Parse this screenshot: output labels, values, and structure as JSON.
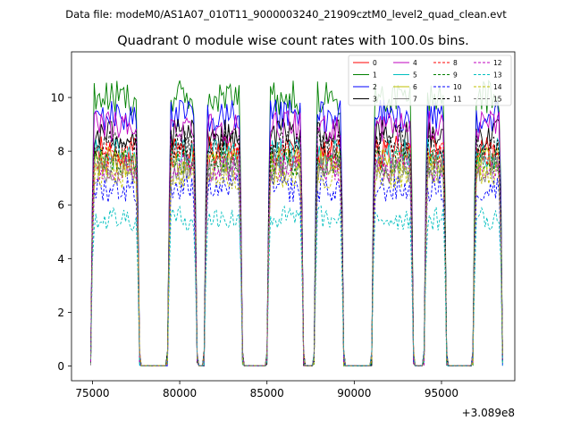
{
  "chart_data": {
    "type": "line",
    "suptitle": "Data file: modeM0/AS1A07_010T11_9000003240_21909cztM0_level2_quad_clean.evt",
    "title": "Quadrant 0 module wise count rates with 100.0s bins.",
    "xlabel": "",
    "ylabel": "",
    "x_offset_label": "+3.089e8",
    "xlim": [
      73800,
      99200
    ],
    "ylim": [
      -0.55,
      11.7
    ],
    "x_ticks": [
      75000,
      80000,
      85000,
      90000,
      95000
    ],
    "x_tick_labels": [
      "75000",
      "80000",
      "85000",
      "90000",
      "95000"
    ],
    "y_ticks": [
      0,
      2,
      4,
      6,
      8,
      10
    ],
    "y_tick_labels": [
      "0",
      "2",
      "4",
      "6",
      "8",
      "10"
    ],
    "grid": false,
    "legend_position": "top-right",
    "bin_width_s": 100,
    "on_intervals": [
      [
        74900,
        77700
      ],
      [
        79300,
        81000
      ],
      [
        81400,
        83600
      ],
      [
        85000,
        87100
      ],
      [
        87700,
        89400
      ],
      [
        91000,
        93400
      ],
      [
        94000,
        95300
      ],
      [
        96800,
        98500
      ]
    ],
    "series": [
      {
        "name": "0",
        "color": "#ff0000",
        "style": "solid",
        "level": 8.0
      },
      {
        "name": "1",
        "color": "#008000",
        "style": "solid",
        "level": 10.0
      },
      {
        "name": "2",
        "color": "#0000ff",
        "style": "solid",
        "level": 9.3
      },
      {
        "name": "3",
        "color": "#000000",
        "style": "solid",
        "level": 8.6
      },
      {
        "name": "4",
        "color": "#bf00bf",
        "style": "solid",
        "level": 8.9
      },
      {
        "name": "5",
        "color": "#00bfbf",
        "style": "solid",
        "level": 7.9
      },
      {
        "name": "6",
        "color": "#bfbf00",
        "style": "solid",
        "level": 7.6
      },
      {
        "name": "7",
        "color": "#808080",
        "style": "solid",
        "level": 7.3
      },
      {
        "name": "8",
        "color": "#ff0000",
        "style": "dashed",
        "level": 7.8
      },
      {
        "name": "9",
        "color": "#008000",
        "style": "dashed",
        "level": 7.6
      },
      {
        "name": "10",
        "color": "#0000ff",
        "style": "dashed",
        "level": 6.6
      },
      {
        "name": "11",
        "color": "#000000",
        "style": "dashed",
        "level": 8.3
      },
      {
        "name": "12",
        "color": "#bf00bf",
        "style": "dashed",
        "level": 7.4
      },
      {
        "name": "13",
        "color": "#00bfbf",
        "style": "dashed",
        "level": 5.5
      },
      {
        "name": "14",
        "color": "#bfbf00",
        "style": "dashed",
        "level": 7.1
      },
      {
        "name": "15",
        "color": "#808080",
        "style": "dashed",
        "level": 7.5
      }
    ]
  }
}
